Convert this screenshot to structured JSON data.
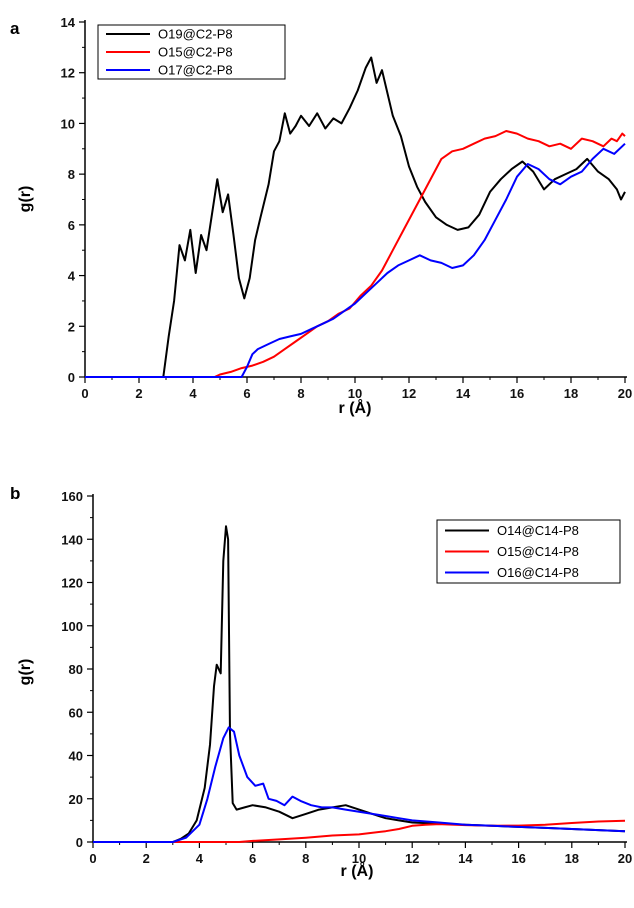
{
  "chart_data": [
    {
      "panel": "a",
      "type": "line",
      "xlabel": "r (Å)",
      "ylabel": "g(r)",
      "xlim": [
        0,
        20
      ],
      "ylim": [
        0,
        14
      ],
      "xticks": [
        "0",
        "2",
        "4",
        "6",
        "8",
        "10",
        "12",
        "14",
        "16",
        "18",
        "20"
      ],
      "yticks": [
        "0",
        "2",
        "4",
        "6",
        "8",
        "10",
        "12",
        "14"
      ],
      "legend_position": "top-left",
      "grid": false,
      "series": [
        {
          "name": "O19@C2-P8",
          "color": "#000000",
          "x": [
            0,
            2.9,
            3.1,
            3.3,
            3.5,
            3.7,
            3.9,
            4.1,
            4.3,
            4.5,
            4.7,
            4.9,
            5.1,
            5.3,
            5.5,
            5.7,
            5.9,
            6.1,
            6.3,
            6.5,
            6.8,
            7.0,
            7.2,
            7.4,
            7.6,
            7.8,
            8.0,
            8.3,
            8.6,
            8.9,
            9.2,
            9.5,
            9.8,
            10.1,
            10.4,
            10.6,
            10.8,
            11.0,
            11.2,
            11.4,
            11.7,
            12.0,
            12.3,
            12.6,
            13.0,
            13.4,
            13.8,
            14.2,
            14.6,
            15.0,
            15.4,
            15.8,
            16.2,
            16.6,
            17.0,
            17.4,
            17.8,
            18.2,
            18.6,
            19.0,
            19.4,
            19.7,
            19.85,
            20
          ],
          "y": [
            0,
            0,
            1.6,
            3.0,
            5.2,
            4.6,
            5.8,
            4.1,
            5.6,
            5.0,
            6.4,
            7.8,
            6.5,
            7.2,
            5.6,
            3.9,
            3.1,
            3.9,
            5.4,
            6.3,
            7.6,
            8.9,
            9.3,
            10.4,
            9.6,
            9.9,
            10.3,
            9.9,
            10.4,
            9.8,
            10.2,
            10.0,
            10.6,
            11.3,
            12.2,
            12.6,
            11.6,
            12.1,
            11.2,
            10.3,
            9.5,
            8.3,
            7.5,
            6.9,
            6.3,
            6.0,
            5.8,
            5.9,
            6.4,
            7.3,
            7.8,
            8.2,
            8.5,
            8.1,
            7.4,
            7.8,
            8.0,
            8.2,
            8.6,
            8.1,
            7.8,
            7.4,
            7.0,
            7.3
          ]
        },
        {
          "name": "O15@C2-P8",
          "color": "#ff0000",
          "x": [
            0,
            4.8,
            5.0,
            5.4,
            5.8,
            6.2,
            6.6,
            7.0,
            7.4,
            7.8,
            8.2,
            8.6,
            9.0,
            9.4,
            9.8,
            10.2,
            10.6,
            11.0,
            11.4,
            11.8,
            12.2,
            12.6,
            12.9,
            13.2,
            13.6,
            14.0,
            14.4,
            14.8,
            15.2,
            15.6,
            16.0,
            16.4,
            16.8,
            17.2,
            17.6,
            18.0,
            18.4,
            18.8,
            19.2,
            19.5,
            19.7,
            19.9,
            20
          ],
          "y": [
            0,
            0,
            0.1,
            0.2,
            0.35,
            0.45,
            0.6,
            0.8,
            1.1,
            1.4,
            1.7,
            2.0,
            2.2,
            2.5,
            2.7,
            3.2,
            3.6,
            4.2,
            5.0,
            5.8,
            6.6,
            7.4,
            8.0,
            8.6,
            8.9,
            9.0,
            9.2,
            9.4,
            9.5,
            9.7,
            9.6,
            9.4,
            9.3,
            9.1,
            9.2,
            9.0,
            9.4,
            9.3,
            9.1,
            9.4,
            9.3,
            9.6,
            9.5
          ]
        },
        {
          "name": "O17@C2-P8",
          "color": "#0000ff",
          "x": [
            0,
            5.8,
            6.0,
            6.2,
            6.4,
            6.8,
            7.2,
            7.6,
            8.0,
            8.4,
            8.8,
            9.2,
            9.6,
            10.0,
            10.4,
            10.8,
            11.2,
            11.6,
            12.0,
            12.4,
            12.8,
            13.2,
            13.6,
            14.0,
            14.4,
            14.8,
            15.2,
            15.6,
            16.0,
            16.4,
            16.8,
            17.2,
            17.6,
            18.0,
            18.4,
            18.8,
            19.2,
            19.6,
            20
          ],
          "y": [
            0,
            0,
            0.4,
            0.9,
            1.1,
            1.3,
            1.5,
            1.6,
            1.7,
            1.9,
            2.1,
            2.3,
            2.6,
            2.9,
            3.3,
            3.7,
            4.1,
            4.4,
            4.6,
            4.8,
            4.6,
            4.5,
            4.3,
            4.4,
            4.8,
            5.4,
            6.2,
            7.0,
            7.9,
            8.4,
            8.2,
            7.8,
            7.6,
            7.9,
            8.1,
            8.6,
            9.0,
            8.8,
            9.2
          ]
        }
      ]
    },
    {
      "panel": "b",
      "type": "line",
      "xlabel": "r (Å)",
      "ylabel": "g(r)",
      "xlim": [
        0,
        20
      ],
      "ylim": [
        0,
        160
      ],
      "xticks": [
        "0",
        "2",
        "4",
        "6",
        "8",
        "10",
        "12",
        "14",
        "16",
        "18",
        "20"
      ],
      "yticks": [
        "0",
        "20",
        "40",
        "60",
        "80",
        "100",
        "120",
        "140",
        "160"
      ],
      "legend_position": "top-right",
      "grid": false,
      "series": [
        {
          "name": "O14@C14-P8",
          "color": "#000000",
          "x": [
            0,
            3.0,
            3.3,
            3.6,
            3.9,
            4.2,
            4.4,
            4.55,
            4.65,
            4.8,
            4.9,
            5.0,
            5.08,
            5.15,
            5.25,
            5.4,
            5.7,
            6.0,
            6.5,
            7.0,
            7.5,
            8.0,
            8.5,
            9.0,
            9.5,
            10.0,
            10.5,
            11.0,
            11.5,
            12.0,
            13.0,
            14.0,
            15.0,
            16.0,
            17.0,
            18.0,
            19.0,
            20.0
          ],
          "y": [
            0,
            0,
            1.5,
            4,
            10,
            25,
            45,
            72,
            82,
            78,
            130,
            146,
            140,
            50,
            18,
            15,
            16,
            17,
            16,
            14,
            11,
            13,
            15,
            16,
            17,
            15,
            13,
            11,
            10,
            9,
            8.5,
            8,
            7.5,
            7,
            6.5,
            6,
            5.5,
            5
          ]
        },
        {
          "name": "O15@C14-P8",
          "color": "#ff0000",
          "x": [
            0,
            5.5,
            6.0,
            7.0,
            8.0,
            9.0,
            10.0,
            11.0,
            11.5,
            12.0,
            12.5,
            13.0,
            14.0,
            15.0,
            16.0,
            17.0,
            18.0,
            19.0,
            20.0
          ],
          "y": [
            0,
            0,
            0.5,
            1.2,
            2,
            3,
            3.5,
            5,
            6,
            7.5,
            8,
            8.3,
            7.8,
            7.5,
            7.6,
            8,
            8.8,
            9.5,
            9.8
          ]
        },
        {
          "name": "O16@C14-P8",
          "color": "#0000ff",
          "x": [
            0,
            3.0,
            3.5,
            4.0,
            4.3,
            4.6,
            4.9,
            5.1,
            5.3,
            5.5,
            5.8,
            6.1,
            6.4,
            6.6,
            6.9,
            7.2,
            7.5,
            7.8,
            8.2,
            8.6,
            9.0,
            9.5,
            10.0,
            10.5,
            11.0,
            11.5,
            12.0,
            13.0,
            14.0,
            15.0,
            16.0,
            17.0,
            18.0,
            19.0,
            20.0
          ],
          "y": [
            0,
            0,
            2,
            8,
            20,
            35,
            48,
            53,
            51,
            40,
            30,
            26,
            27,
            20,
            19,
            17,
            21,
            19,
            17,
            16,
            16,
            15,
            14,
            13,
            12,
            11,
            10,
            9,
            8,
            7.5,
            7,
            6.5,
            6,
            5.5,
            5
          ]
        }
      ]
    }
  ]
}
